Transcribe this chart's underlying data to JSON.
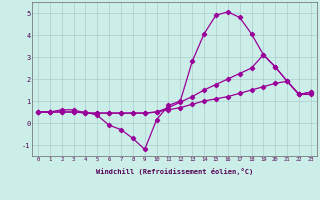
{
  "xlabel": "Windchill (Refroidissement éolien,°C)",
  "bg_color": "#cceee8",
  "grid_color": "#aacccc",
  "line_color": "#990099",
  "xlim": [
    -0.5,
    23.5
  ],
  "ylim": [
    -1.5,
    5.5
  ],
  "yticks": [
    -1,
    0,
    1,
    2,
    3,
    4,
    5
  ],
  "xticks": [
    0,
    1,
    2,
    3,
    4,
    5,
    6,
    7,
    8,
    9,
    10,
    11,
    12,
    13,
    14,
    15,
    16,
    17,
    18,
    19,
    20,
    21,
    22,
    23
  ],
  "series3_x": [
    0,
    1,
    2,
    3,
    4,
    5,
    6,
    7,
    8,
    9,
    10,
    11,
    12,
    13,
    14,
    15,
    16,
    17,
    18,
    19,
    20,
    21,
    22,
    23
  ],
  "series3_y": [
    0.5,
    0.5,
    0.5,
    0.5,
    0.5,
    0.35,
    -0.1,
    -0.3,
    -0.7,
    -1.2,
    0.15,
    0.8,
    1.0,
    2.8,
    4.05,
    4.9,
    5.05,
    4.8,
    4.05,
    3.1,
    2.55,
    1.9,
    1.3,
    1.4
  ],
  "series1_x": [
    0,
    1,
    2,
    3,
    4,
    5,
    6,
    7,
    8,
    9,
    10,
    11,
    12,
    13,
    14,
    15,
    16,
    17,
    18,
    19,
    20,
    21,
    22,
    23
  ],
  "series1_y": [
    0.5,
    0.5,
    0.6,
    0.6,
    0.45,
    0.45,
    0.45,
    0.45,
    0.45,
    0.45,
    0.5,
    0.7,
    0.95,
    1.2,
    1.5,
    1.75,
    2.0,
    2.25,
    2.5,
    3.1,
    2.55,
    1.9,
    1.3,
    1.4
  ],
  "series2_x": [
    0,
    1,
    2,
    3,
    4,
    5,
    6,
    7,
    8,
    9,
    10,
    11,
    12,
    13,
    14,
    15,
    16,
    17,
    18,
    19,
    20,
    21,
    22,
    23
  ],
  "series2_y": [
    0.5,
    0.5,
    0.5,
    0.5,
    0.45,
    0.45,
    0.45,
    0.45,
    0.45,
    0.45,
    0.5,
    0.6,
    0.7,
    0.85,
    1.0,
    1.1,
    1.2,
    1.35,
    1.5,
    1.65,
    1.8,
    1.9,
    1.3,
    1.3
  ]
}
